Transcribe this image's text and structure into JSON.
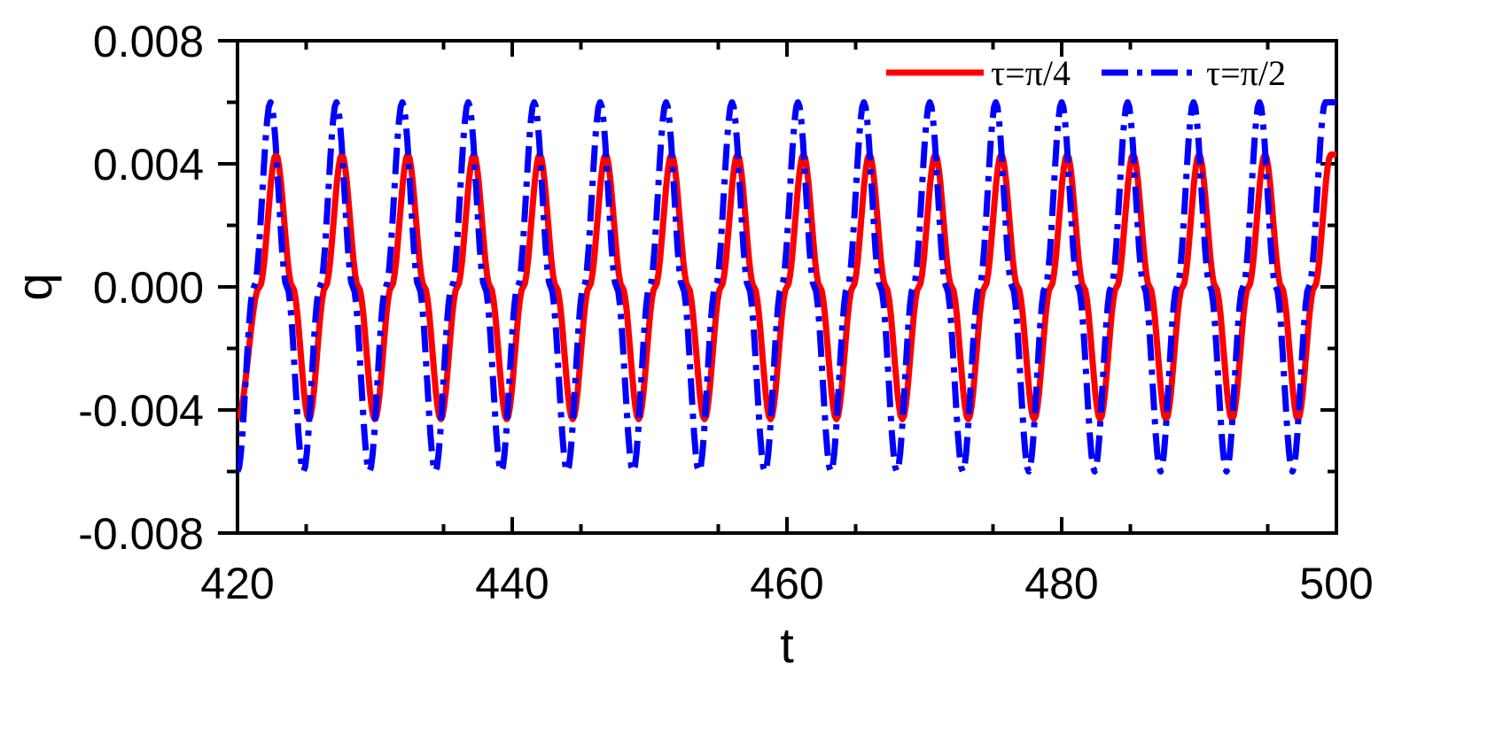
{
  "chart_data": {
    "type": "line",
    "title": "",
    "xlabel": "t",
    "ylabel": "q",
    "xlim": [
      420,
      500
    ],
    "ylim": [
      -0.008,
      0.008
    ],
    "x_ticks": [
      420,
      440,
      460,
      480,
      500
    ],
    "x_tick_labels": [
      "420",
      "440",
      "460",
      "480",
      "500"
    ],
    "y_ticks": [
      -0.008,
      -0.004,
      0.0,
      0.004,
      0.008
    ],
    "y_tick_labels": [
      "-0.008",
      "-0.004",
      "0.000",
      "0.004",
      "0.008"
    ],
    "grid": false,
    "legend_position": "top-right",
    "series": [
      {
        "name": "τ=π/4",
        "style": "solid",
        "color": "#ff0000",
        "x": [
          420.0,
          421.6,
          422.8,
          424.0,
          425.2,
          426.4,
          427.6,
          428.8,
          430.0,
          431.2,
          432.4,
          433.6,
          434.8,
          436.0,
          437.2,
          438.4,
          439.6,
          440.8,
          442.0,
          443.2,
          444.4,
          445.6,
          446.8,
          448.0,
          449.2,
          450.4,
          451.6,
          452.8,
          454.0,
          455.2,
          456.4,
          457.6,
          458.8,
          460.0,
          461.2,
          462.4,
          463.6,
          464.8,
          466.0,
          467.2,
          468.4,
          469.6,
          470.8,
          472.0,
          473.2,
          474.4,
          475.6,
          476.8,
          478.0,
          479.2,
          480.4,
          481.6,
          482.8,
          484.0,
          485.2,
          486.4,
          487.6,
          488.8,
          490.0,
          491.2,
          492.4,
          493.6,
          494.8,
          496.0,
          497.2,
          498.4,
          499.6,
          500.0
        ],
        "y": [
          -0.0043,
          0.0,
          0.0043,
          0.0,
          -0.0043,
          0.0,
          0.0043,
          0.0,
          -0.0043,
          0.0,
          0.0043,
          0.0,
          -0.0043,
          0.0,
          0.0043,
          0.0,
          -0.0043,
          0.0,
          0.0043,
          0.0,
          -0.0043,
          0.0,
          0.0043,
          0.0,
          -0.0043,
          0.0,
          0.0043,
          0.0,
          -0.0043,
          0.0,
          0.0043,
          0.0,
          -0.0043,
          0.0,
          0.0043,
          0.0,
          -0.0043,
          0.0,
          0.0043,
          0.0,
          -0.0043,
          0.0,
          0.0043,
          0.0,
          -0.0043,
          0.0,
          0.0043,
          0.0,
          -0.0043,
          0.0,
          0.0043,
          0.0,
          -0.0043,
          0.0,
          0.0043,
          0.0,
          -0.0043,
          0.0,
          0.0043,
          0.0,
          -0.0043,
          0.0,
          0.0043,
          0.0,
          -0.0043,
          0.0,
          0.0043,
          0.0043
        ]
      },
      {
        "name": "τ=π/2",
        "style": "dash-dot",
        "color": "#0000ff",
        "x": [
          420.0,
          421.2,
          422.4,
          423.6,
          424.8,
          426.0,
          427.2,
          428.4,
          429.6,
          430.8,
          432.0,
          433.2,
          434.4,
          435.6,
          436.8,
          438.0,
          439.2,
          440.4,
          441.6,
          442.8,
          444.0,
          445.2,
          446.4,
          447.6,
          448.8,
          450.0,
          451.2,
          452.4,
          453.6,
          454.8,
          456.0,
          457.2,
          458.4,
          459.6,
          460.8,
          462.0,
          463.2,
          464.4,
          465.6,
          466.8,
          468.0,
          469.2,
          470.4,
          471.6,
          472.8,
          474.0,
          475.2,
          476.4,
          477.6,
          478.8,
          480.0,
          481.2,
          482.4,
          483.6,
          484.8,
          486.0,
          487.2,
          488.4,
          489.6,
          490.8,
          492.0,
          493.2,
          494.4,
          495.6,
          496.8,
          498.0,
          499.2,
          500.0
        ],
        "y": [
          -0.006,
          0.0,
          0.006,
          0.0,
          -0.006,
          0.0,
          0.006,
          0.0,
          -0.006,
          0.0,
          0.006,
          0.0,
          -0.006,
          0.0,
          0.006,
          0.0,
          -0.006,
          0.0,
          0.006,
          0.0,
          -0.006,
          0.0,
          0.006,
          0.0,
          -0.006,
          0.0,
          0.006,
          0.0,
          -0.006,
          0.0,
          0.006,
          0.0,
          -0.006,
          0.0,
          0.006,
          0.0,
          -0.006,
          0.0,
          0.006,
          0.0,
          -0.006,
          0.0,
          0.006,
          0.0,
          -0.006,
          0.0,
          0.006,
          0.0,
          -0.006,
          0.0,
          0.006,
          0.0,
          -0.006,
          0.0,
          0.006,
          0.0,
          -0.006,
          0.0,
          0.006,
          0.0,
          -0.006,
          0.0,
          0.006,
          0.0,
          -0.006,
          0.0,
          0.006,
          0.006
        ]
      }
    ]
  }
}
